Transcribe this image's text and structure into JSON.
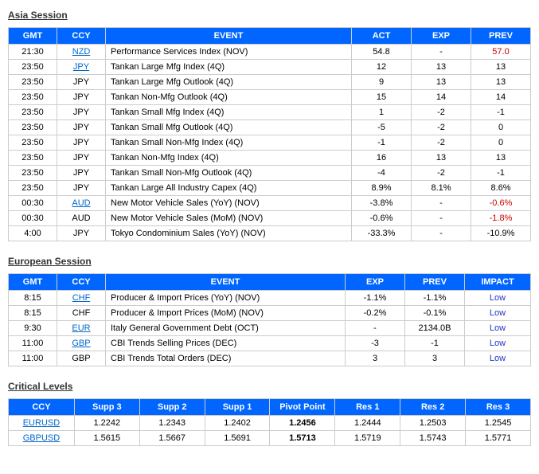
{
  "asia": {
    "title": "Asia Session",
    "columns": [
      "GMT",
      "CCY",
      "EVENT",
      "ACT",
      "EXP",
      "PREV"
    ],
    "rows": [
      {
        "gmt": "21:30",
        "ccy": "NZD",
        "ccy_link": true,
        "event": "Performance Services Index (NOV)",
        "act": "54.8",
        "exp": "-",
        "prev": "57.0",
        "prev_neg": true
      },
      {
        "gmt": "23:50",
        "ccy": "JPY",
        "ccy_link": true,
        "event": "Tankan Large Mfg Index (4Q)",
        "act": "12",
        "exp": "13",
        "prev": "13"
      },
      {
        "gmt": "23:50",
        "ccy": "JPY",
        "event": "Tankan Large Mfg Outlook (4Q)",
        "act": "9",
        "exp": "13",
        "prev": "13"
      },
      {
        "gmt": "23:50",
        "ccy": "JPY",
        "event": "Tankan Non-Mfg Outlook (4Q)",
        "act": "15",
        "exp": "14",
        "prev": "14"
      },
      {
        "gmt": "23:50",
        "ccy": "JPY",
        "event": "Tankan Small Mfg Index (4Q)",
        "act": "1",
        "exp": "-2",
        "prev": "-1"
      },
      {
        "gmt": "23:50",
        "ccy": "JPY",
        "event": "Tankan Small Mfg Outlook (4Q)",
        "act": "-5",
        "exp": "-2",
        "prev": "0"
      },
      {
        "gmt": "23:50",
        "ccy": "JPY",
        "event": "Tankan Small Non-Mfg Index (4Q)",
        "act": "-1",
        "exp": "-2",
        "prev": "0"
      },
      {
        "gmt": "23:50",
        "ccy": "JPY",
        "event": "Tankan Non-Mfg Index (4Q)",
        "act": "16",
        "exp": "13",
        "prev": "13"
      },
      {
        "gmt": "23:50",
        "ccy": "JPY",
        "event": "Tankan Small Non-Mfg Outlook (4Q)",
        "act": "-4",
        "exp": "-2",
        "prev": "-1"
      },
      {
        "gmt": "23:50",
        "ccy": "JPY",
        "event": "Tankan Large All Industry Capex (4Q)",
        "act": "8.9%",
        "exp": "8.1%",
        "prev": "8.6%"
      },
      {
        "gmt": "00:30",
        "ccy": "AUD",
        "ccy_link": true,
        "event": "New Motor Vehicle Sales (YoY) (NOV)",
        "act": "-3.8%",
        "exp": "-",
        "prev": "-0.6%",
        "prev_neg": true
      },
      {
        "gmt": "00:30",
        "ccy": "AUD",
        "event": "New Motor Vehicle Sales (MoM) (NOV)",
        "act": "-0.6%",
        "exp": "-",
        "prev": "-1.8%",
        "prev_neg": true
      },
      {
        "gmt": "4:00",
        "ccy": "JPY",
        "event": "Tokyo Condominium Sales (YoY) (NOV)",
        "act": "-33.3%",
        "exp": "-",
        "prev": "-10.9%"
      }
    ]
  },
  "europe": {
    "title": "European Session",
    "columns": [
      "GMT",
      "CCY",
      "EVENT",
      "EXP",
      "PREV",
      "IMPACT"
    ],
    "rows": [
      {
        "gmt": "8:15",
        "ccy": "CHF",
        "ccy_link": true,
        "event": "Producer & Import Prices (YoY) (NOV)",
        "exp": "-1.1%",
        "prev": "-1.1%",
        "impact": "Low"
      },
      {
        "gmt": "8:15",
        "ccy": "CHF",
        "event": "Producer & Import Prices (MoM) (NOV)",
        "exp": "-0.2%",
        "prev": "-0.1%",
        "impact": "Low"
      },
      {
        "gmt": "9:30",
        "ccy": "EUR",
        "ccy_link": true,
        "event": "Italy General Government Debt (OCT)",
        "exp": "-",
        "prev": "2134.0B",
        "impact": "Low"
      },
      {
        "gmt": "11:00",
        "ccy": "GBP",
        "ccy_link": true,
        "event": "CBI Trends Selling Prices (DEC)",
        "exp": "-3",
        "prev": "-1",
        "impact": "Low"
      },
      {
        "gmt": "11:00",
        "ccy": "GBP",
        "event": "CBI Trends Total Orders (DEC)",
        "exp": "3",
        "prev": "3",
        "impact": "Low"
      }
    ]
  },
  "critical": {
    "title": "Critical Levels",
    "columns": [
      "CCY",
      "Supp 3",
      "Supp 2",
      "Supp 1",
      "Pivot Point",
      "Res 1",
      "Res 2",
      "Res 3"
    ],
    "rows": [
      {
        "ccy": "EURUSD",
        "s3": "1.2242",
        "s2": "1.2343",
        "s1": "1.2402",
        "pp": "1.2456",
        "r1": "1.2444",
        "r2": "1.2503",
        "r3": "1.2545"
      },
      {
        "ccy": "GBPUSD",
        "s3": "1.5615",
        "s2": "1.5667",
        "s1": "1.5691",
        "pp": "1.5713",
        "r1": "1.5719",
        "r2": "1.5743",
        "r3": "1.5771"
      }
    ]
  },
  "colors": {
    "header_bg": "#0066ff",
    "header_fg": "#ffffff",
    "border": "#cccccc",
    "link": "#0066cc",
    "neg": "#cc0000",
    "impact": "#2233cc",
    "text": "#000000"
  }
}
